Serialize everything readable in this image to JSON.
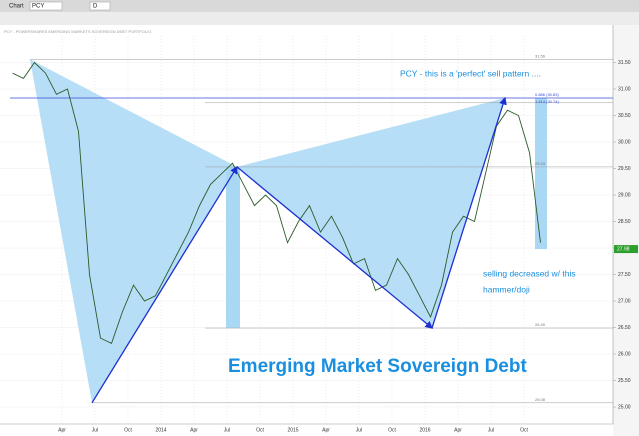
{
  "toolbar": {
    "menu": "Chart",
    "symbol": "PCY",
    "period": "D"
  },
  "chart_data": {
    "type": "line",
    "subtitle": "PCY - POWERSHARES EMERGING MARKETS SOVEREIGN DEBT PORTFOLIO",
    "title": "Emerging Market Sovereign Debt",
    "annotations": [
      "PCY - this is a 'perfect' sell pattern ....",
      "selling decreased w/ this",
      "hammer/doji"
    ],
    "categories": [
      null,
      null,
      null,
      null,
      null,
      "Apr",
      null,
      null,
      "Jul",
      null,
      null,
      "Oct",
      null,
      null,
      "2014",
      null,
      null,
      "Apr",
      null,
      null,
      "Jul",
      null,
      null,
      "Oct",
      null,
      null,
      "2015",
      null,
      null,
      "Apr",
      null,
      null,
      "Jul",
      null,
      null,
      "Oct",
      null,
      null,
      "2016",
      null,
      null,
      "Apr",
      null,
      null,
      "Jul",
      null,
      null,
      "Oct",
      null
    ],
    "series": [
      {
        "name": "PCY",
        "color": "#2a5a2a",
        "values": [
          31.3,
          31.2,
          31.5,
          31.3,
          30.9,
          31.0,
          30.2,
          27.5,
          26.3,
          26.2,
          26.8,
          27.3,
          27.0,
          27.1,
          27.5,
          27.9,
          28.3,
          28.8,
          29.2,
          29.4,
          29.6,
          29.2,
          28.8,
          29.0,
          28.8,
          28.1,
          28.5,
          28.8,
          28.3,
          28.6,
          28.2,
          27.7,
          27.8,
          27.2,
          27.3,
          27.8,
          27.5,
          27.1,
          26.7,
          27.3,
          28.3,
          28.6,
          28.5,
          29.4,
          30.3,
          30.6,
          30.5,
          29.8,
          28.1
        ]
      }
    ],
    "last": {
      "value": 27.98,
      "label": "27.98",
      "color": "#2e9e2e"
    },
    "levels": [
      {
        "value": 31.56,
        "label": "31.56"
      },
      {
        "value": 30.83,
        "label": "0.886 (30.83)"
      },
      {
        "value": 30.74,
        "label": "1.414 (30.74)"
      },
      {
        "value": 29.53,
        "label": "29.53"
      },
      {
        "value": 26.49,
        "label": "26.49"
      },
      {
        "value": 25.08,
        "label": "25.08"
      }
    ],
    "ylim": [
      24.68,
      32.0
    ],
    "yticks": [
      {
        "value": 25,
        "label": "25.00"
      },
      {
        "value": 25.5,
        "label": "25.50"
      },
      {
        "value": 26,
        "label": "26.00"
      },
      {
        "value": 26.5,
        "label": "26.50"
      },
      {
        "value": 27,
        "label": "27.00"
      },
      {
        "value": 27.5,
        "label": "27.50"
      },
      {
        "value": 28,
        "label": "28.00"
      },
      {
        "value": 28.5,
        "label": "28.50"
      },
      {
        "value": 29,
        "label": "29.00"
      },
      {
        "value": 29.5,
        "label": "29.50"
      },
      {
        "value": 30,
        "label": "30.00"
      },
      {
        "value": 30.5,
        "label": "30.50"
      },
      {
        "value": 31,
        "label": "31.00"
      },
      {
        "value": 31.5,
        "label": "31.50"
      }
    ],
    "grid": true,
    "pattern_color": "#a9d8f5",
    "arrow_color": "#1d2fd0"
  }
}
